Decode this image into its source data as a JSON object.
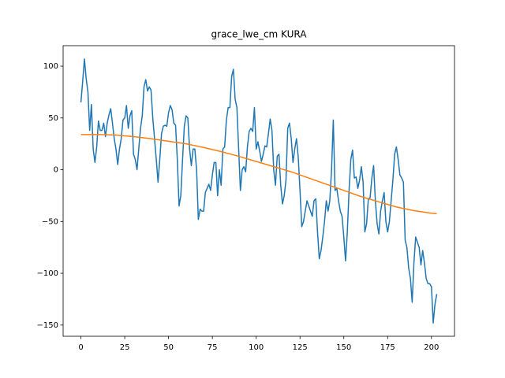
{
  "chart_data": {
    "type": "line",
    "title": "grace_lwe_cm KURA",
    "xlim": [
      -10.15,
      213.15
    ],
    "ylim": [
      -160.8,
      119.8
    ],
    "xticks": [
      0,
      25,
      50,
      75,
      100,
      125,
      150,
      175,
      200
    ],
    "yticks": [
      {
        "value": -150,
        "label": "−150"
      },
      {
        "value": -100,
        "label": "−100"
      },
      {
        "value": -50,
        "label": "−50"
      },
      0,
      50,
      100
    ],
    "series": [
      {
        "color": "#1f77b4",
        "x": [
          0,
          1,
          2,
          3,
          4,
          5,
          6,
          7,
          8,
          9,
          10,
          11,
          12,
          13,
          14,
          15,
          16,
          17,
          18,
          19,
          20,
          21,
          22,
          23,
          24,
          25,
          26,
          27,
          28,
          29,
          30,
          31,
          32,
          33,
          34,
          35,
          36,
          37,
          38,
          39,
          40,
          41,
          42,
          43,
          44,
          45,
          46,
          47,
          48,
          49,
          50,
          51,
          52,
          53,
          54,
          55,
          56,
          57,
          58,
          59,
          60,
          61,
          62,
          63,
          64,
          65,
          66,
          67,
          68,
          69,
          70,
          71,
          72,
          73,
          74,
          75,
          76,
          77,
          78,
          79,
          80,
          81,
          82,
          83,
          84,
          85,
          86,
          87,
          88,
          89,
          90,
          91,
          92,
          93,
          94,
          95,
          96,
          97,
          98,
          99,
          100,
          101,
          102,
          103,
          104,
          105,
          106,
          107,
          108,
          109,
          110,
          111,
          112,
          113,
          114,
          115,
          116,
          117,
          118,
          119,
          120,
          121,
          122,
          123,
          124,
          125,
          126,
          127,
          128,
          129,
          130,
          131,
          132,
          133,
          134,
          135,
          136,
          137,
          138,
          139,
          140,
          141,
          142,
          143,
          144,
          145,
          146,
          147,
          148,
          149,
          150,
          151,
          152,
          153,
          154,
          155,
          156,
          157,
          158,
          159,
          160,
          161,
          162,
          163,
          164,
          165,
          166,
          167,
          168,
          169,
          170,
          171,
          172,
          173,
          174,
          175,
          176,
          177,
          178,
          179,
          180,
          181,
          182,
          183,
          184,
          185,
          186,
          187,
          188,
          189,
          190,
          191,
          192,
          193,
          194,
          195,
          196,
          197,
          198,
          199,
          200,
          201,
          202,
          203
        ],
        "values": [
          65,
          85,
          107,
          88,
          75,
          38,
          63,
          20,
          7,
          22,
          47,
          38,
          38,
          45,
          32,
          45,
          53,
          59,
          45,
          30,
          20,
          5,
          20,
          30,
          48,
          50,
          62,
          40,
          52,
          57,
          15,
          10,
          0,
          20,
          40,
          52,
          80,
          87,
          76,
          80,
          77,
          50,
          30,
          10,
          -12,
          10,
          35,
          42,
          43,
          42,
          55,
          62,
          58,
          45,
          43,
          10,
          -35,
          -25,
          10,
          42,
          52,
          50,
          20,
          4,
          20,
          20,
          0,
          -48,
          -38,
          -40,
          -40,
          -22,
          -18,
          -14,
          -20,
          -5,
          7,
          7,
          -25,
          0,
          -15,
          20,
          22,
          48,
          60,
          60,
          90,
          97,
          68,
          60,
          20,
          -20,
          0,
          3,
          -2,
          22,
          37,
          40,
          37,
          60,
          20,
          27,
          18,
          8,
          15,
          23,
          22,
          35,
          49,
          38,
          0,
          -15,
          13,
          15,
          -15,
          -33,
          -25,
          -10,
          40,
          45,
          30,
          7,
          20,
          30,
          12,
          -20,
          -55,
          -50,
          -40,
          -30,
          -35,
          -40,
          -45,
          -30,
          -28,
          -60,
          -86,
          -78,
          -65,
          -50,
          -30,
          -40,
          -30,
          0,
          48,
          -20,
          -18,
          -30,
          -40,
          -45,
          -65,
          -88,
          -60,
          -20,
          10,
          19,
          -8,
          -7,
          -18,
          -10,
          3,
          -12,
          -60,
          -52,
          -28,
          -27,
          -8,
          4,
          -30,
          -52,
          -62,
          -40,
          -30,
          -22,
          -50,
          -60,
          -50,
          -30,
          -10,
          15,
          22,
          10,
          -5,
          -8,
          -12,
          -68,
          -75,
          -95,
          -105,
          -128,
          -90,
          -65,
          -70,
          -75,
          -92,
          -78,
          -90,
          -105,
          -110,
          -110,
          -113,
          -148,
          -130,
          -120
        ]
      },
      {
        "color": "#ff7f0e",
        "x": [
          0,
          10,
          20,
          30,
          40,
          50,
          60,
          70,
          80,
          90,
          100,
          110,
          120,
          130,
          140,
          150,
          160,
          170,
          180,
          190,
          200,
          203
        ],
        "values": [
          34,
          34,
          33.5,
          32,
          30,
          27.5,
          25,
          21.5,
          17.5,
          13,
          8,
          3,
          -2,
          -8,
          -14,
          -20,
          -26,
          -31,
          -36,
          -39.5,
          -42,
          -42.5
        ]
      }
    ]
  }
}
